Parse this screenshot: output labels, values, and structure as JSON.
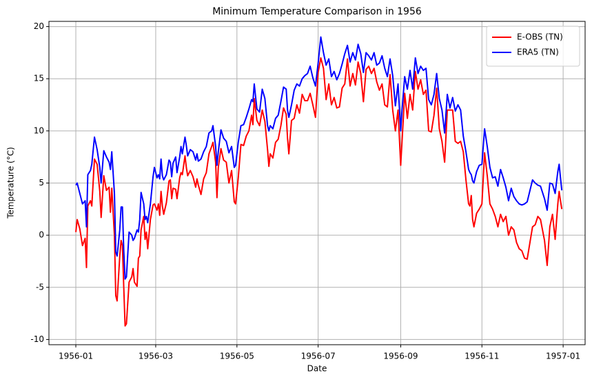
{
  "chart_data": {
    "type": "line",
    "title": "Minimum Temperature Comparison in 1956",
    "x_label": "Date",
    "y_label": "Temperature (°C)",
    "x": [
      0,
      1,
      3,
      5,
      7,
      8,
      9,
      11,
      12,
      14,
      16,
      18,
      19,
      21,
      23,
      25,
      26,
      27,
      29,
      30,
      31,
      33,
      34,
      35,
      36,
      37,
      38,
      40,
      42,
      43,
      44,
      46,
      47,
      48,
      49,
      51,
      52,
      53,
      54,
      56,
      58,
      59,
      61,
      62,
      63,
      64,
      65,
      66,
      68,
      70,
      71,
      72,
      73,
      75,
      76,
      78,
      79,
      80,
      82,
      83,
      84,
      86,
      88,
      90,
      91,
      92,
      94,
      96,
      98,
      100,
      102,
      103,
      105,
      106,
      107,
      109,
      111,
      113,
      115,
      117,
      119,
      120,
      122,
      124,
      126,
      128,
      130,
      132,
      133,
      134,
      136,
      138,
      140,
      142,
      144,
      145,
      146,
      148,
      150,
      152,
      154,
      156,
      158,
      159,
      160,
      162,
      164,
      166,
      168,
      170,
      172,
      174,
      176,
      178,
      180,
      182,
      184,
      186,
      188,
      190,
      192,
      194,
      196,
      198,
      200,
      202,
      204,
      206,
      208,
      210,
      212,
      214,
      216,
      218,
      220,
      222,
      224,
      226,
      228,
      230,
      232,
      234,
      236,
      238,
      240,
      242,
      244,
      245,
      247,
      249,
      251,
      253,
      255,
      257,
      259,
      261,
      263,
      265,
      267,
      269,
      271,
      273,
      275,
      277,
      279,
      281,
      283,
      285,
      287,
      289,
      291,
      293,
      295,
      296,
      297,
      298,
      299,
      301,
      303,
      305,
      307,
      309,
      311,
      313,
      315,
      317,
      319,
      321,
      323,
      325,
      327,
      329,
      331,
      333,
      335,
      337,
      339,
      343,
      345,
      347,
      349,
      352,
      354,
      356,
      358,
      360,
      362,
      363,
      364,
      365
    ],
    "series": [
      {
        "name": "E-OBS (TN)",
        "color": "#ff0000",
        "values": [
          0.3,
          1.5,
          0.6,
          -1.0,
          -0.3,
          -3.1,
          2.8,
          3.3,
          2.8,
          7.3,
          6.8,
          4.2,
          1.7,
          5.7,
          4.3,
          4.6,
          2.2,
          4.5,
          0.0,
          -5.8,
          -6.3,
          -2.0,
          -0.5,
          -1.0,
          -5.0,
          -8.7,
          -8.5,
          -4.5,
          -4.0,
          -3.2,
          -4.5,
          -4.9,
          -2.2,
          -2.0,
          0.5,
          1.8,
          -0.4,
          0.3,
          -1.3,
          1.5,
          2.9,
          3.0,
          2.4,
          3.0,
          1.9,
          4.2,
          2.8,
          2.0,
          3.1,
          5.2,
          5.3,
          3.5,
          4.5,
          4.4,
          3.5,
          5.5,
          6.0,
          5.8,
          7.6,
          6.5,
          5.7,
          6.2,
          5.6,
          4.6,
          5.4,
          4.8,
          3.9,
          5.4,
          6.0,
          7.8,
          8.5,
          8.9,
          7.0,
          3.6,
          6.5,
          8.3,
          7.2,
          7.0,
          5.0,
          6.2,
          3.2,
          3.0,
          5.5,
          8.7,
          8.6,
          9.5,
          10.0,
          11.5,
          10.6,
          13.1,
          11.0,
          10.5,
          12.0,
          10.9,
          8.2,
          6.6,
          7.8,
          7.4,
          8.9,
          9.2,
          10.5,
          12.2,
          11.6,
          9.3,
          7.8,
          11.0,
          11.2,
          12.5,
          11.7,
          13.5,
          12.9,
          12.9,
          13.6,
          12.5,
          11.3,
          15.6,
          17.0,
          16.0,
          13.0,
          14.5,
          12.5,
          13.2,
          12.2,
          12.3,
          14.1,
          14.5,
          16.9,
          14.3,
          15.5,
          14.4,
          16.6,
          15.5,
          12.8,
          15.9,
          16.2,
          15.5,
          16.0,
          14.7,
          13.9,
          14.5,
          12.5,
          12.3,
          15.4,
          12.0,
          10.0,
          12.0,
          6.7,
          9.0,
          13.6,
          11.2,
          13.5,
          12.0,
          15.7,
          14.0,
          14.9,
          13.5,
          13.9,
          10.0,
          9.9,
          11.5,
          14.1,
          10.2,
          9.0,
          7.0,
          12.0,
          12.0,
          12.0,
          9.0,
          8.8,
          9.0,
          8.0,
          5.3,
          3.0,
          2.8,
          3.8,
          1.5,
          0.8,
          2.1,
          2.5,
          3.0,
          7.9,
          5.7,
          3.0,
          2.5,
          1.8,
          0.8,
          2.0,
          1.3,
          1.8,
          0.0,
          0.8,
          0.5,
          -0.7,
          -1.3,
          -1.5,
          -2.2,
          -2.3,
          0.8,
          1.0,
          1.8,
          1.5,
          -0.5,
          -2.9,
          0.8,
          2.0,
          -0.4,
          3.0,
          4.2,
          3.3,
          2.5
        ]
      },
      {
        "name": "ERA5 (TN)",
        "color": "#0000ff",
        "values": [
          4.8,
          5.0,
          4.0,
          3.0,
          3.3,
          0.8,
          5.8,
          6.2,
          6.8,
          9.4,
          8.2,
          6.5,
          5.0,
          8.1,
          7.5,
          7.0,
          6.3,
          8.0,
          4.0,
          -1.6,
          -2.0,
          0.5,
          2.7,
          2.7,
          -1.5,
          -4.2,
          -4.0,
          0.3,
          0.0,
          -0.5,
          -0.3,
          0.5,
          0.3,
          1.5,
          4.1,
          3.0,
          1.5,
          1.8,
          1.2,
          3.0,
          5.6,
          6.5,
          5.5,
          5.8,
          5.4,
          7.3,
          5.7,
          5.3,
          5.8,
          7.2,
          7.0,
          5.6,
          6.9,
          7.5,
          6.0,
          7.5,
          8.5,
          7.8,
          9.4,
          8.6,
          7.6,
          8.2,
          8.0,
          7.2,
          7.8,
          7.1,
          7.3,
          8.0,
          8.5,
          9.8,
          10.0,
          10.5,
          8.5,
          6.7,
          8.0,
          10.1,
          9.3,
          9.0,
          7.9,
          8.5,
          6.5,
          6.7,
          8.9,
          10.5,
          10.6,
          11.3,
          12.1,
          13.0,
          12.8,
          14.5,
          12.1,
          11.8,
          14.0,
          13.1,
          10.5,
          10.0,
          10.5,
          10.2,
          11.2,
          11.5,
          12.8,
          14.2,
          14.0,
          12.0,
          11.3,
          12.5,
          13.9,
          14.5,
          14.3,
          15.0,
          15.3,
          15.5,
          16.2,
          15.1,
          14.3,
          16.5,
          19.0,
          17.5,
          16.3,
          16.9,
          15.2,
          15.7,
          14.9,
          15.5,
          16.4,
          17.4,
          18.2,
          16.6,
          17.5,
          16.8,
          18.3,
          17.4,
          15.6,
          17.5,
          17.2,
          16.8,
          17.5,
          16.3,
          16.5,
          17.2,
          16.0,
          15.2,
          16.9,
          15.3,
          12.4,
          14.5,
          10.0,
          12.0,
          15.2,
          14.0,
          15.8,
          14.0,
          17.0,
          15.5,
          16.2,
          15.8,
          16.0,
          13.0,
          12.5,
          13.5,
          15.5,
          13.1,
          12.0,
          9.8,
          13.5,
          12.2,
          13.2,
          11.9,
          12.5,
          12.0,
          9.5,
          8.0,
          6.3,
          6.0,
          5.8,
          5.2,
          5.0,
          6.1,
          6.7,
          6.8,
          10.2,
          8.5,
          6.5,
          5.5,
          5.6,
          4.7,
          6.3,
          5.5,
          4.6,
          3.3,
          4.5,
          3.7,
          3.3,
          3.0,
          2.9,
          3.0,
          3.2,
          5.3,
          5.0,
          4.8,
          4.7,
          3.5,
          2.4,
          5.0,
          4.9,
          4.0,
          6.1,
          6.8,
          5.5,
          4.3
        ]
      }
    ],
    "xlim": [
      -20.2,
      382.5
    ],
    "ylim": [
      -10.5,
      20.5
    ],
    "xticks": [
      {
        "value": 0,
        "label": "1956-01"
      },
      {
        "value": 60,
        "label": "1956-03"
      },
      {
        "value": 121,
        "label": "1956-05"
      },
      {
        "value": 182,
        "label": "1956-07"
      },
      {
        "value": 244,
        "label": "1956-09"
      },
      {
        "value": 305,
        "label": "1956-11"
      },
      {
        "value": 366,
        "label": "1957-01"
      }
    ],
    "yticks": [
      -10,
      -5,
      0,
      5,
      10,
      15,
      20
    ],
    "grid": true,
    "legend": "upper right"
  }
}
